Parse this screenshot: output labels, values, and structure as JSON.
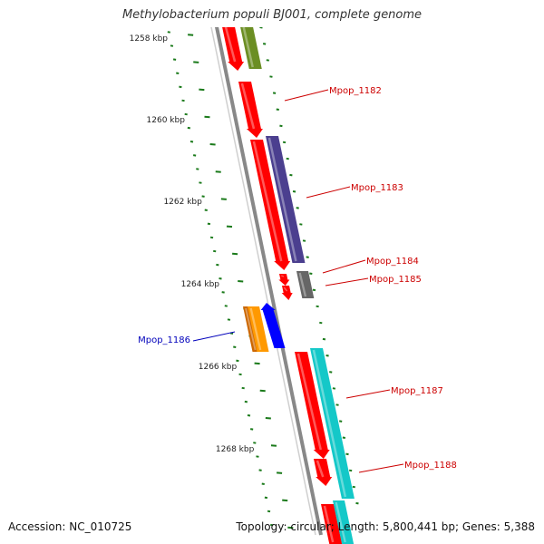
{
  "title": "Methylobacterium populi BJ001, complete genome",
  "accession": "Accession: NC_010725",
  "topology": "Topology: circular; Length: 5,800,441 bp; Genes: 5,388",
  "kbp_ticks": [
    "1258 kbp",
    "1260 kbp",
    "1262 kbp",
    "1264 kbp",
    "1266 kbp",
    "1268 kbp"
  ],
  "colors": {
    "tick": "#1a7a1a",
    "backbone": "#888888",
    "red": "#ff0000",
    "olive": "#6b8e23",
    "purple": "#4b3f8f",
    "gray": "#666666",
    "cyan": "#14c8c8",
    "orange": "#ff9900",
    "blue": "#0000ff",
    "label_red": "#cc0000",
    "label_blue": "#0000bb"
  },
  "genes": [
    {
      "id": "Mpop_1182",
      "label": "Mpop_1182",
      "color": "red"
    },
    {
      "id": "Mpop_1183",
      "label": "Mpop_1183",
      "color": "red"
    },
    {
      "id": "Mpop_1184",
      "label": "Mpop_1184",
      "color": "red"
    },
    {
      "id": "Mpop_1185",
      "label": "Mpop_1185",
      "color": "red"
    },
    {
      "id": "Mpop_1186",
      "label": "Mpop_1186",
      "color": "blue"
    },
    {
      "id": "Mpop_1187",
      "label": "Mpop_1187",
      "color": "red"
    },
    {
      "id": "Mpop_1188",
      "label": "Mpop_1188",
      "color": "red"
    }
  ]
}
